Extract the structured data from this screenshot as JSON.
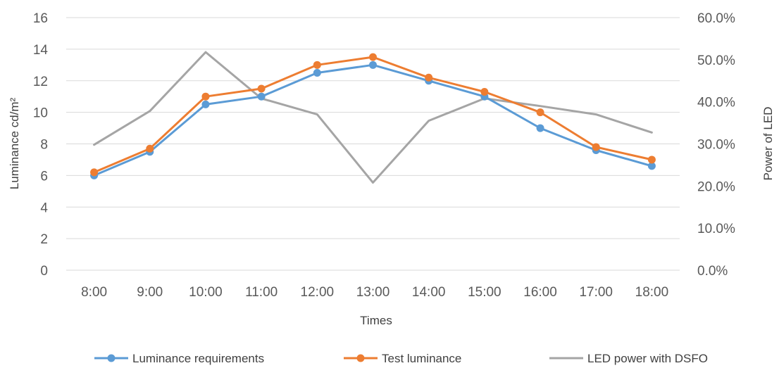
{
  "chart_data": {
    "type": "line",
    "title": "",
    "xlabel": "Times",
    "ylabel": "Luminance  cd/m²",
    "y2label": "Power of LED",
    "categories": [
      "8:00",
      "9:00",
      "10:00",
      "11:00",
      "12:00",
      "13:00",
      "14:00",
      "15:00",
      "16:00",
      "17:00",
      "18:00"
    ],
    "ylim": [
      0,
      16
    ],
    "yticks": [
      "0",
      "2",
      "4",
      "6",
      "8",
      "10",
      "12",
      "14",
      "16"
    ],
    "y2lim": [
      0,
      60
    ],
    "y2ticks": [
      "0.0%",
      "10.0%",
      "20.0%",
      "30.0%",
      "40.0%",
      "50.0%",
      "60.0%"
    ],
    "grid": true,
    "legend_position": "bottom",
    "series": [
      {
        "name": "Luminance requirements",
        "axis": "left",
        "color": "#5b9bd5",
        "marker": true,
        "values": [
          6.0,
          7.5,
          10.5,
          11.0,
          12.5,
          13.0,
          12.0,
          11.0,
          9.0,
          7.6,
          6.6
        ]
      },
      {
        "name": "Test luminance",
        "axis": "left",
        "color": "#ed7d31",
        "marker": true,
        "values": [
          6.2,
          7.7,
          11.0,
          11.5,
          13.0,
          13.5,
          12.2,
          11.3,
          10.0,
          7.8,
          7.0
        ]
      },
      {
        "name": "LED power with DSFO",
        "axis": "right",
        "color": "#a5a5a5",
        "marker": false,
        "values": [
          29.8,
          37.8,
          51.8,
          40.8,
          37.0,
          20.8,
          35.5,
          40.8,
          39.0,
          37.0,
          32.7
        ]
      }
    ]
  }
}
